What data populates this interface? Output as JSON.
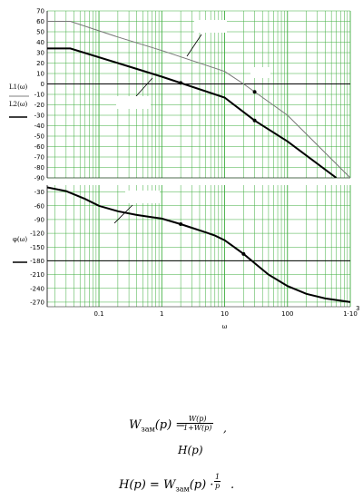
{
  "chart_data": [
    {
      "type": "line",
      "xscale": "log",
      "xlim": [
        0.015,
        1000
      ],
      "ylim": [
        -90,
        70
      ],
      "grid": true,
      "y_ticks": [
        70,
        60,
        50,
        40,
        30,
        20,
        10,
        0,
        -10,
        -20,
        -30,
        -40,
        -50,
        -60,
        -70,
        -80,
        -90
      ],
      "y_tick_labels": [
        "70",
        "60",
        "50",
        "40",
        "30",
        "20",
        "10",
        "0",
        "-10",
        "-20",
        "-30",
        "-40",
        "-50",
        "-60",
        "-70",
        "-80",
        "-90"
      ],
      "ylabel_lines": [
        "L1(ω)",
        "L2(ω)"
      ],
      "reference_line": 0,
      "series": [
        {
          "style": "thin",
          "color": "#777777",
          "x": [
            0.015,
            0.035,
            0.2,
            1,
            10,
            20,
            100,
            1000
          ],
          "y": [
            60,
            60,
            45,
            32,
            12,
            0,
            -30,
            -90
          ],
          "marker_x": [
            30
          ]
        },
        {
          "style": "thick",
          "color": "#000000",
          "x": [
            0.015,
            0.035,
            0.2,
            1,
            10,
            30,
            100,
            600
          ],
          "y": [
            34,
            34,
            20,
            7,
            -13,
            -35,
            -55,
            -90
          ],
          "marker_x": [
            2,
            30
          ]
        }
      ]
    },
    {
      "type": "line",
      "xscale": "log",
      "xlim": [
        0.015,
        1000
      ],
      "ylim": [
        -280,
        -15
      ],
      "grid": true,
      "y_ticks": [
        -30,
        -60,
        -90,
        -120,
        -150,
        -180,
        -210,
        -240,
        -270
      ],
      "y_tick_labels": [
        "-30",
        "-60",
        "-90",
        "-120",
        "-150",
        "-180",
        "-210",
        "-240",
        "-270"
      ],
      "ylabel": "φ(ω)",
      "reference_line": -180,
      "x_tick_values": [
        0.1,
        1,
        10,
        100,
        1000
      ],
      "x_tick_labels": [
        "0.1",
        "1",
        "10",
        "100",
        "1·10"
      ],
      "x_tick_superscript": "3",
      "xlabel": "ω",
      "series": [
        {
          "style": "thick",
          "color": "#000000",
          "x": [
            0.015,
            0.03,
            0.06,
            0.1,
            0.2,
            0.4,
            0.7,
            1,
            2,
            3,
            5,
            7,
            10,
            20,
            30,
            50,
            100,
            200,
            400,
            1000
          ],
          "y": [
            -20,
            -28,
            -45,
            -60,
            -72,
            -80,
            -85,
            -88,
            -100,
            -108,
            -118,
            -125,
            -135,
            -165,
            -185,
            -210,
            -235,
            -252,
            -262,
            -270
          ],
          "marker_x": [
            2,
            20
          ]
        }
      ]
    }
  ],
  "formulas": {
    "f1_lhs": "W",
    "f1_sub": "зам",
    "f1_arg": "(p) =",
    "f1_num": "W(p)",
    "f1_den": "1+W(p)",
    "f1_tail": ",",
    "f2": "H(p)",
    "f3_lhs": "H(p) = W",
    "f3_sub": "зам",
    "f3_arg": "(p) ·",
    "f3_num": "1",
    "f3_den": "p",
    "f3_tail": "."
  }
}
